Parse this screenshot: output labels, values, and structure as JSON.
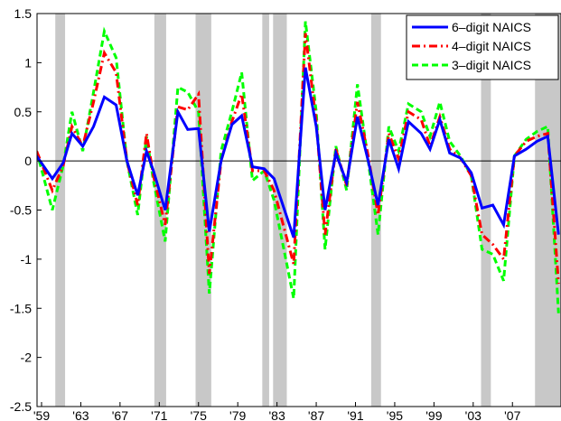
{
  "chart_data": {
    "type": "line",
    "x": [
      1958.5,
      1960.1,
      1961.2,
      1962.1,
      1963.2,
      1964.3,
      1965.4,
      1966.6,
      1967.7,
      1968.8,
      1969.7,
      1970.4,
      1971.6,
      1972.9,
      1973.9,
      1975.0,
      1976.1,
      1977.3,
      1978.4,
      1979.4,
      1980.5,
      1981.7,
      1982.7,
      1984.7,
      1985.9,
      1987.0,
      1987.9,
      1989.0,
      1990.1,
      1991.2,
      1992.3,
      1993.3,
      1994.4,
      1995.4,
      1996.4,
      1997.7,
      1998.6,
      1999.6,
      2000.6,
      2001.7,
      2002.8,
      2003.9,
      2005.0,
      2006.1,
      2007.2,
      2008.4,
      2009.5,
      2010.6,
      2011.7
    ],
    "series": [
      {
        "name": "6–digit NAICS",
        "color": "#0000ff",
        "dash": "solid",
        "values": [
          0.05,
          -0.18,
          -0.02,
          0.28,
          0.15,
          0.35,
          0.65,
          0.57,
          0.0,
          -0.35,
          0.1,
          -0.1,
          -0.5,
          0.5,
          0.32,
          0.33,
          -0.72,
          0.0,
          0.37,
          0.46,
          -0.06,
          -0.08,
          -0.18,
          -0.78,
          0.95,
          0.35,
          -0.5,
          0.08,
          -0.22,
          0.45,
          0.0,
          -0.45,
          0.22,
          -0.08,
          0.4,
          0.28,
          0.12,
          0.42,
          0.08,
          0.03,
          -0.12,
          -0.48,
          -0.45,
          -0.65,
          0.05,
          0.12,
          0.2,
          0.25,
          -0.75
        ]
      },
      {
        "name": "4–digit NAICS",
        "color": "#ff0000",
        "dash": "dashdot",
        "values": [
          0.1,
          -0.3,
          -0.05,
          0.35,
          0.15,
          0.6,
          1.1,
          0.9,
          0.0,
          -0.45,
          0.28,
          -0.15,
          -0.65,
          0.55,
          0.52,
          0.68,
          -1.15,
          0.0,
          0.4,
          0.68,
          -0.1,
          -0.1,
          -0.3,
          -1.05,
          1.3,
          0.4,
          -0.75,
          0.12,
          -0.25,
          0.6,
          0.05,
          -0.55,
          0.28,
          0.02,
          0.5,
          0.42,
          0.15,
          0.45,
          0.12,
          0.03,
          -0.15,
          -0.75,
          -0.85,
          -1.0,
          0.05,
          0.2,
          0.25,
          0.28,
          -1.25
        ]
      },
      {
        "name": "3–digit NAICS",
        "color": "#00ff00",
        "dash": "dashed",
        "values": [
          0.1,
          -0.5,
          -0.05,
          0.5,
          0.1,
          0.7,
          1.32,
          1.05,
          0.0,
          -0.55,
          0.25,
          -0.2,
          -0.82,
          0.75,
          0.7,
          0.5,
          -1.35,
          0.1,
          0.5,
          0.9,
          -0.2,
          -0.1,
          -0.4,
          -1.4,
          1.42,
          0.5,
          -0.9,
          0.15,
          -0.3,
          0.78,
          0.0,
          -0.75,
          0.35,
          0.1,
          0.58,
          0.5,
          0.25,
          0.6,
          0.2,
          0.05,
          -0.15,
          -0.9,
          -0.95,
          -1.22,
          0.05,
          0.22,
          0.3,
          0.35,
          -1.55
        ]
      }
    ],
    "shaded_periods": [
      [
        1960.4,
        1961.4
      ],
      [
        1970.5,
        1971.7
      ],
      [
        1974.7,
        1976.3
      ],
      [
        1981.5,
        1982.2
      ],
      [
        1982.6,
        1984.0
      ],
      [
        1992.6,
        1993.6
      ],
      [
        2003.8,
        2004.8
      ],
      [
        2009.3,
        2011.95
      ]
    ],
    "shade_color": "#c8c8c8",
    "xlim": [
      1958.54,
      2011.95
    ],
    "ylim": [
      -2.5,
      1.5
    ],
    "xticks": [
      {
        "value": 1959,
        "label": "'59"
      },
      {
        "value": 1963,
        "label": "'63"
      },
      {
        "value": 1967,
        "label": "'67"
      },
      {
        "value": 1971,
        "label": "'71"
      },
      {
        "value": 1975,
        "label": "'75"
      },
      {
        "value": 1979,
        "label": "'79"
      },
      {
        "value": 1983,
        "label": "'83"
      },
      {
        "value": 1987,
        "label": "'87"
      },
      {
        "value": 1991,
        "label": "'91"
      },
      {
        "value": 1995,
        "label": "'95"
      },
      {
        "value": 1999,
        "label": "'99"
      },
      {
        "value": 2003,
        "label": "'03"
      },
      {
        "value": 2007,
        "label": "'07"
      }
    ],
    "yticks": [
      -2.5,
      -2,
      -1.5,
      -1,
      -0.5,
      0,
      0.5,
      1,
      1.5
    ],
    "legend_position": "upper right",
    "grid": false
  }
}
